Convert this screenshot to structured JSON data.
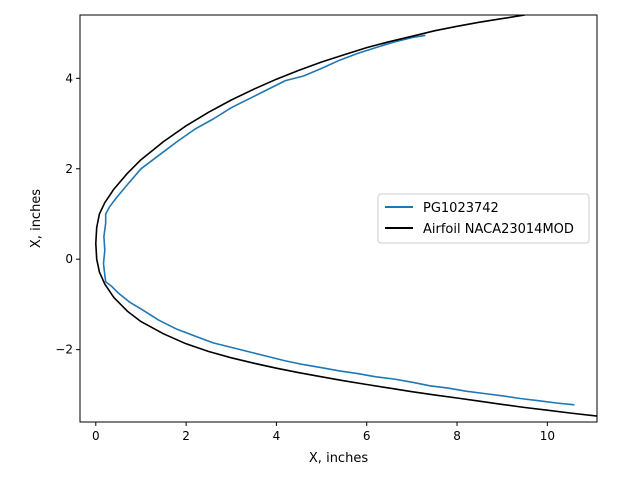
{
  "chart_data": {
    "type": "line",
    "title": "",
    "xlabel": "X, inches",
    "ylabel": "X, inches",
    "xlim": [
      -0.35,
      11.1
    ],
    "ylim": [
      -3.6,
      5.4
    ],
    "xticks": [
      0,
      2,
      4,
      6,
      8,
      10
    ],
    "yticks": [
      -2,
      0,
      2,
      4
    ],
    "xtick_labels": [
      "0",
      "2",
      "4",
      "6",
      "8",
      "10"
    ],
    "ytick_labels": [
      "−2",
      "0",
      "2",
      "4"
    ],
    "grid": false,
    "legend_position": "center-right",
    "series": [
      {
        "name": "PG1023742",
        "color": "#1f77b4",
        "x": [
          7.3,
          7.0,
          6.6,
          6.2,
          5.8,
          5.4,
          5.0,
          4.6,
          4.2,
          3.8,
          3.4,
          3.0,
          2.6,
          2.2,
          1.8,
          1.4,
          1.0,
          0.7,
          0.45,
          0.3,
          0.22,
          0.22,
          0.18,
          0.2,
          0.17,
          0.2,
          0.22,
          0.35,
          0.5,
          0.75,
          1.0,
          1.4,
          1.8,
          2.2,
          2.6,
          3.0,
          3.4,
          3.8,
          4.2,
          4.6,
          5.0,
          5.4,
          5.8,
          6.2,
          6.6,
          7.0,
          7.4,
          7.8,
          8.2,
          8.6,
          9.0,
          9.4,
          9.8,
          10.2,
          10.6
        ],
        "y": [
          4.95,
          4.9,
          4.8,
          4.68,
          4.55,
          4.4,
          4.22,
          4.05,
          3.95,
          3.75,
          3.55,
          3.35,
          3.1,
          2.88,
          2.6,
          2.3,
          2.0,
          1.65,
          1.35,
          1.15,
          1.0,
          0.8,
          0.5,
          0.2,
          -0.1,
          -0.35,
          -0.5,
          -0.6,
          -0.75,
          -0.95,
          -1.1,
          -1.35,
          -1.55,
          -1.7,
          -1.85,
          -1.95,
          -2.05,
          -2.15,
          -2.25,
          -2.33,
          -2.4,
          -2.47,
          -2.53,
          -2.6,
          -2.65,
          -2.72,
          -2.8,
          -2.85,
          -2.92,
          -2.97,
          -3.02,
          -3.08,
          -3.13,
          -3.18,
          -3.22
        ]
      },
      {
        "name": "Airfoil NACA23014MOD",
        "color": "#000000",
        "x": [
          9.5,
          9.0,
          8.5,
          8.0,
          7.5,
          7.0,
          6.5,
          6.0,
          5.5,
          5.0,
          4.5,
          4.0,
          3.5,
          3.0,
          2.5,
          2.0,
          1.5,
          1.0,
          0.7,
          0.4,
          0.2,
          0.08,
          0.02,
          0.0,
          0.02,
          0.08,
          0.2,
          0.4,
          0.7,
          1.0,
          1.5,
          2.0,
          2.5,
          3.0,
          3.5,
          4.0,
          4.5,
          5.0,
          5.5,
          6.0,
          6.5,
          7.0,
          7.5,
          8.0,
          8.5,
          9.0,
          9.5,
          10.0,
          10.5,
          11.1
        ],
        "y": [
          5.4,
          5.32,
          5.24,
          5.15,
          5.05,
          4.93,
          4.81,
          4.68,
          4.52,
          4.36,
          4.18,
          3.98,
          3.76,
          3.52,
          3.25,
          2.95,
          2.6,
          2.2,
          1.9,
          1.55,
          1.25,
          1.0,
          0.7,
          0.35,
          0.0,
          -0.28,
          -0.55,
          -0.85,
          -1.15,
          -1.38,
          -1.65,
          -1.87,
          -2.04,
          -2.18,
          -2.3,
          -2.41,
          -2.51,
          -2.6,
          -2.69,
          -2.77,
          -2.85,
          -2.93,
          -3.0,
          -3.07,
          -3.14,
          -3.21,
          -3.28,
          -3.34,
          -3.4,
          -3.47
        ]
      }
    ]
  }
}
